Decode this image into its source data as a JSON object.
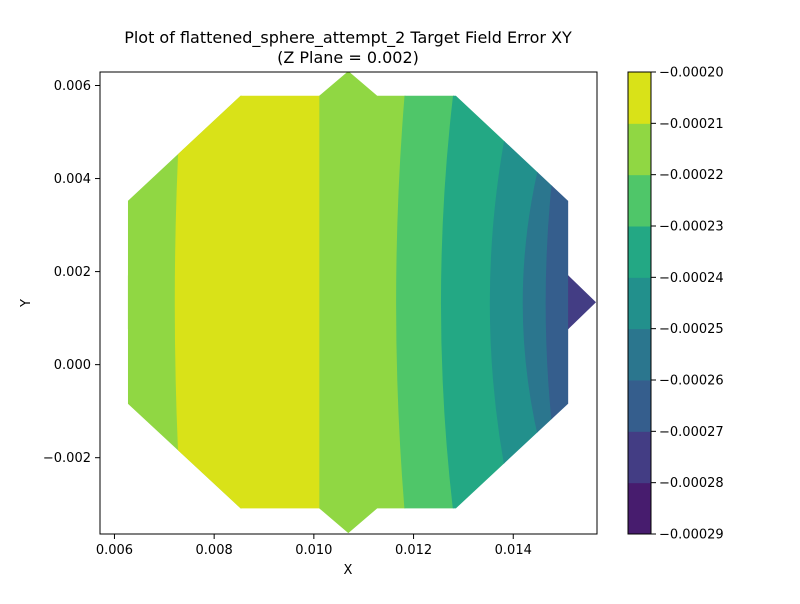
{
  "chart_data": {
    "type": "contour",
    "title": "Plot of flattened_sphere_attempt_2 Target Field Error XY",
    "subtitle": "(Z Plane = 0.002)",
    "xlabel": "X",
    "ylabel": "Y",
    "xlim": [
      0.00571,
      0.01568
    ],
    "ylim": [
      -0.00364,
      0.00629
    ],
    "xticks": [
      {
        "value": 0.006,
        "label": "0.006"
      },
      {
        "value": 0.008,
        "label": "0.008"
      },
      {
        "value": 0.01,
        "label": "0.010"
      },
      {
        "value": 0.012,
        "label": "0.012"
      },
      {
        "value": 0.014,
        "label": "0.014"
      }
    ],
    "yticks": [
      {
        "value": -0.002,
        "label": "−0.002"
      },
      {
        "value": 0.0,
        "label": "0.000"
      },
      {
        "value": 0.002,
        "label": "0.002"
      },
      {
        "value": 0.004,
        "label": "0.004"
      },
      {
        "value": 0.006,
        "label": "0.006"
      }
    ],
    "domain_outline": [
      [
        0.00853,
        0.00578
      ],
      [
        0.01011,
        0.00578
      ],
      [
        0.01069,
        0.00631
      ],
      [
        0.01127,
        0.00578
      ],
      [
        0.01285,
        0.00578
      ],
      [
        0.0151,
        0.00352
      ],
      [
        0.0151,
        0.00192
      ],
      [
        0.01566,
        0.00134
      ],
      [
        0.0151,
        0.00076
      ],
      [
        0.0151,
        -0.00084
      ],
      [
        0.01285,
        -0.00309
      ],
      [
        0.01127,
        -0.00309
      ],
      [
        0.01069,
        -0.00362
      ],
      [
        0.01011,
        -0.00309
      ],
      [
        0.00853,
        -0.00309
      ],
      [
        0.00627,
        -0.00084
      ],
      [
        0.00627,
        0.00076
      ],
      [
        0.00571,
        0.00134
      ],
      [
        0.00627,
        0.00192
      ],
      [
        0.00627,
        0.00352
      ]
    ],
    "levels": [
      -0.00029,
      -0.00028,
      -0.00027,
      -0.00026,
      -0.00025,
      -0.00024,
      -0.00023,
      -0.00022,
      -0.00021,
      -0.0002
    ],
    "contour_bands": [
      {
        "range": [
          -0.00022,
          -0.00021
        ],
        "color": "#90d743",
        "left_x": [
          0.00627,
          0.00627
        ],
        "right_x": [
          0.00853,
          0.00853
        ]
      },
      {
        "range": [
          -0.00021,
          -0.0002
        ],
        "color": "#d9e218",
        "left_x": [
          0.00737,
          0.00721
        ],
        "right_x": [
          0.01011,
          0.01011
        ]
      },
      {
        "range": [
          -0.00022,
          -0.00021
        ],
        "color": "#90d743",
        "left_x": [
          0.01011,
          0.01011
        ],
        "right_x": [
          0.01186,
          0.01165
        ]
      },
      {
        "range": [
          -0.00023,
          -0.00022
        ],
        "color": "#4fc669",
        "left_x": [
          0.01186,
          0.01165
        ],
        "right_x": [
          0.01285,
          0.01255
        ]
      },
      {
        "range": [
          -0.00024,
          -0.00023
        ],
        "color": "#23a884",
        "left_x": [
          0.01285,
          0.01255
        ],
        "right_x": [
          0.01411,
          0.01353
        ]
      },
      {
        "range": [
          -0.00025,
          -0.00024
        ],
        "color": "#22908c",
        "left_x": [
          0.01411,
          0.01353
        ],
        "right_x": [
          0.0151,
          0.01419
        ]
      },
      {
        "range": [
          -0.00026,
          -0.00025
        ],
        "color": "#2b768e",
        "left_x": [
          0.0151,
          0.01419
        ],
        "right_x": [
          0.0151,
          0.01465
        ]
      },
      {
        "range": [
          -0.00027,
          -0.00026
        ],
        "color": "#355e8d",
        "left_x": [
          0.0151,
          0.01465
        ],
        "right_x": [
          0.0151,
          0.0151
        ]
      },
      {
        "range": [
          -0.00028,
          -0.00027
        ],
        "color": "#433d84",
        "left_x": [
          0.0151,
          0.0151
        ],
        "right_x": [
          0.01566,
          0.01566
        ]
      }
    ],
    "colorbar": {
      "min": -0.00029,
      "max": -0.0002,
      "segments": [
        {
          "from": -0.00029,
          "to": -0.00028,
          "color": "#471c6e"
        },
        {
          "from": -0.00028,
          "to": -0.00027,
          "color": "#433d84"
        },
        {
          "from": -0.00027,
          "to": -0.00026,
          "color": "#355e8d"
        },
        {
          "from": -0.00026,
          "to": -0.00025,
          "color": "#2b768e"
        },
        {
          "from": -0.00025,
          "to": -0.00024,
          "color": "#22908c"
        },
        {
          "from": -0.00024,
          "to": -0.00023,
          "color": "#23a884"
        },
        {
          "from": -0.00023,
          "to": -0.00022,
          "color": "#4fc669"
        },
        {
          "from": -0.00022,
          "to": -0.00021,
          "color": "#90d743"
        },
        {
          "from": -0.00021,
          "to": -0.0002,
          "color": "#d9e218"
        }
      ],
      "ticks": [
        {
          "value": -0.0002,
          "label": "−0.00020"
        },
        {
          "value": -0.00021,
          "label": "−0.00021"
        },
        {
          "value": -0.00022,
          "label": "−0.00022"
        },
        {
          "value": -0.00023,
          "label": "−0.00023"
        },
        {
          "value": -0.00024,
          "label": "−0.00024"
        },
        {
          "value": -0.00025,
          "label": "−0.00025"
        },
        {
          "value": -0.00026,
          "label": "−0.00026"
        },
        {
          "value": -0.00027,
          "label": "−0.00027"
        },
        {
          "value": -0.00028,
          "label": "−0.00028"
        },
        {
          "value": -0.00029,
          "label": "−0.00029"
        }
      ]
    }
  }
}
